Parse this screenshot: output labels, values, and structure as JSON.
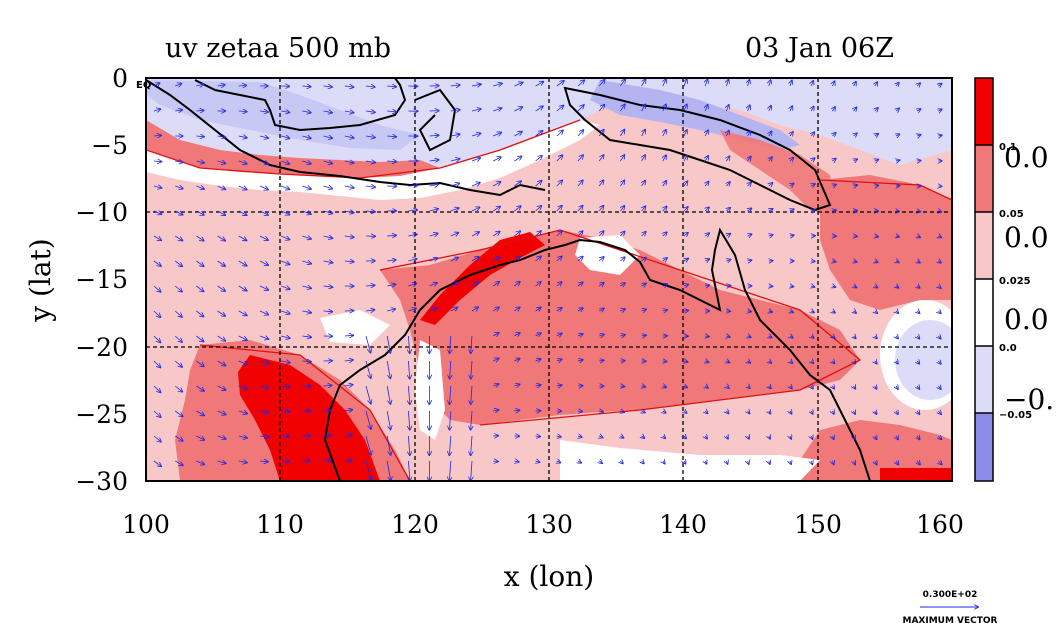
{
  "title": {
    "left": "uv zetaa 500 mb",
    "right": "03 Jan 06Z"
  },
  "axes": {
    "xlabel": "x (lon)",
    "ylabel": "y (lat)",
    "x_ticks": [
      "100",
      "110",
      "120",
      "130",
      "140",
      "150",
      "160"
    ],
    "y_ticks": [
      "0",
      "−5",
      "−10",
      "−15",
      "−20",
      "−25",
      "−30"
    ],
    "xlim": [
      100,
      160
    ],
    "ylim": [
      -30,
      0
    ],
    "corner_label": "EQ"
  },
  "colorbar": {
    "big_labels": [
      "0.0",
      "0.0",
      "0.0",
      "−0."
    ],
    "small_labels": [
      "0.1",
      "0.05",
      "0.025",
      "0.0",
      "−0.05"
    ],
    "colors": [
      "#f00000",
      "#f07878",
      "#f8c8c8",
      "#ffffff",
      "#dcdcf8",
      "#8c8ce8"
    ]
  },
  "vector": {
    "value": "0.300E+02",
    "label": "MAXIMUM VECTOR",
    "color": "#1e28e6"
  },
  "chart_data": {
    "type": "heatmap",
    "title": "uv zetaa 500 mb 03 Jan 06Z",
    "xlabel": "x (lon)",
    "ylabel": "y (lat)",
    "xlim": [
      100,
      160
    ],
    "ylim": [
      -30,
      0
    ],
    "grid": true,
    "field": "zetaa (absolute vorticity) filled contours with uv wind vectors",
    "levels": [
      -0.05,
      0.0,
      0.025,
      0.05,
      0.1
    ]
  }
}
